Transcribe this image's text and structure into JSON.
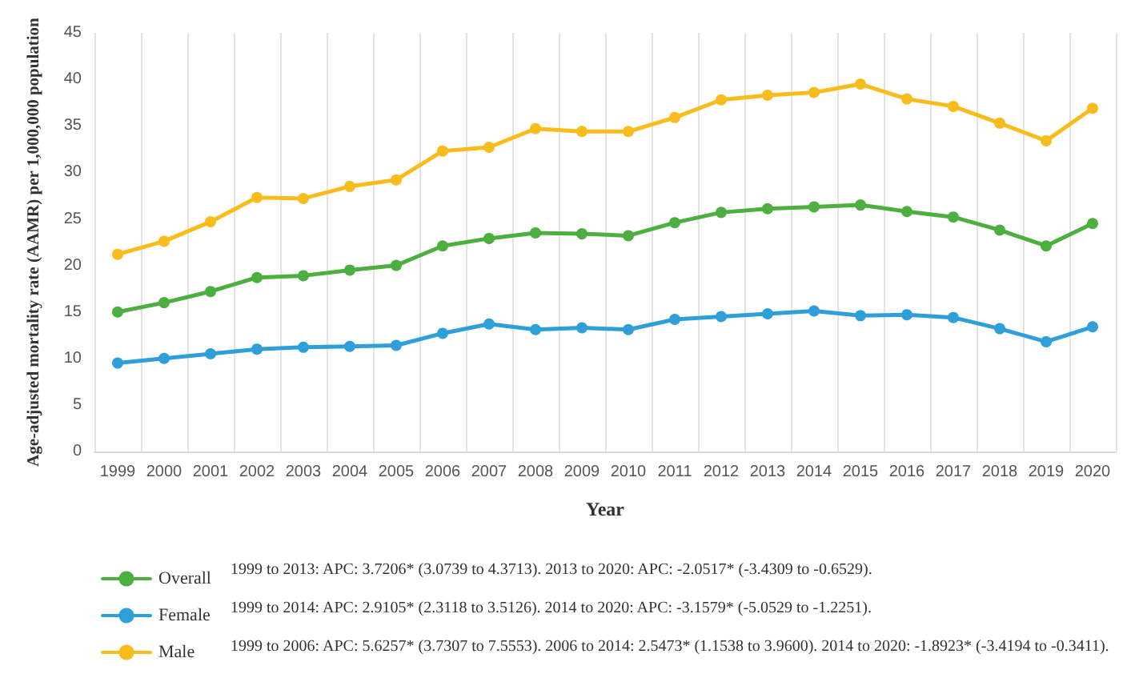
{
  "chart_data": {
    "type": "line",
    "xlabel": "Year",
    "ylabel": "Age-adjusted mortality rate (AAMR) per 1,000,000 population",
    "categories": [
      "1999",
      "2000",
      "2001",
      "2002",
      "2003",
      "2004",
      "2005",
      "2006",
      "2007",
      "2008",
      "2009",
      "2010",
      "2011",
      "2012",
      "2013",
      "2014",
      "2015",
      "2016",
      "2017",
      "2018",
      "2019",
      "2020"
    ],
    "series": [
      {
        "name": "Overall",
        "color": "#4caf3f",
        "values": [
          15.0,
          16.0,
          17.2,
          18.7,
          18.9,
          19.5,
          20.0,
          22.1,
          22.9,
          23.5,
          23.4,
          23.2,
          24.6,
          25.7,
          26.1,
          26.3,
          26.5,
          25.8,
          25.2,
          23.8,
          22.1,
          24.5
        ]
      },
      {
        "name": "Female",
        "color": "#2e9fd9",
        "values": [
          9.5,
          10.0,
          10.5,
          11.0,
          11.2,
          11.3,
          11.4,
          12.7,
          13.7,
          13.1,
          13.3,
          13.1,
          14.2,
          14.5,
          14.8,
          15.1,
          14.6,
          14.7,
          14.4,
          13.2,
          11.8,
          13.4
        ]
      },
      {
        "name": "Male",
        "color": "#f8bd1c",
        "values": [
          21.2,
          22.6,
          24.7,
          27.3,
          27.2,
          28.5,
          29.2,
          32.3,
          32.7,
          34.7,
          34.4,
          34.4,
          35.9,
          37.8,
          38.3,
          38.6,
          39.5,
          37.9,
          37.1,
          35.3,
          33.4,
          36.9
        ]
      }
    ],
    "ylim": [
      0,
      45
    ],
    "yticks": [
      0,
      5,
      10,
      15,
      20,
      25,
      30,
      35,
      40,
      45
    ],
    "grid": "x",
    "legend": "bottom",
    "marker": "circle",
    "line_style": "solid",
    "annotations": [
      "1999 to 2013: APC: 3.7206* (3.0739 to 4.3713). 2013 to 2020: APC: -2.0517* (-3.4309 to -0.6529).",
      "1999 to 2014: APC: 2.9105* (2.3118 to 3.5126). 2014 to 2020: APC: -3.1579* (-5.0529 to -1.2251).",
      "1999 to 2006: APC: 5.6257* (3.7307 to 7.5553). 2006 to 2014: 2.5473* (1.1538 to 3.9600). 2014 to 2020: -1.8923* (-3.4194 to -0.3411)."
    ]
  }
}
